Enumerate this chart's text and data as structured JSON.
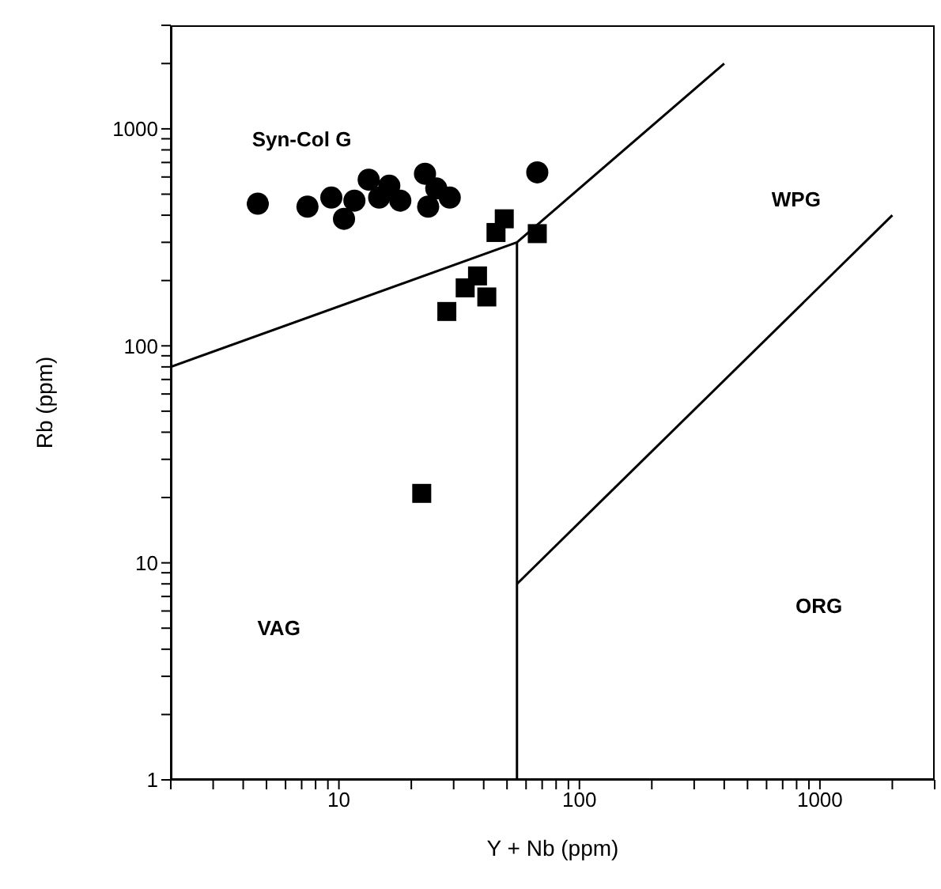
{
  "chart_data": {
    "type": "scatter",
    "xlabel": "Y + Nb (ppm)",
    "ylabel": "Rb (ppm)",
    "log": "xy",
    "xlim": [
      2,
      3000
    ],
    "ylim": [
      1,
      3000
    ],
    "xticks": [
      {
        "value": 2,
        "label": null
      },
      {
        "value": 3,
        "label": null
      },
      {
        "value": 4,
        "label": null
      },
      {
        "value": 5,
        "label": null
      },
      {
        "value": 6,
        "label": null
      },
      {
        "value": 7,
        "label": null
      },
      {
        "value": 8,
        "label": null
      },
      {
        "value": 9,
        "label": null
      },
      10,
      {
        "value": 20,
        "label": null
      },
      {
        "value": 30,
        "label": null
      },
      {
        "value": 40,
        "label": null
      },
      {
        "value": 50,
        "label": null
      },
      {
        "value": 60,
        "label": null
      },
      {
        "value": 70,
        "label": null
      },
      {
        "value": 80,
        "label": null
      },
      {
        "value": 90,
        "label": null
      },
      100,
      {
        "value": 200,
        "label": null
      },
      {
        "value": 300,
        "label": null
      },
      {
        "value": 400,
        "label": null
      },
      {
        "value": 500,
        "label": null
      },
      {
        "value": 600,
        "label": null
      },
      {
        "value": 700,
        "label": null
      },
      {
        "value": 800,
        "label": null
      },
      {
        "value": 900,
        "label": null
      },
      1000,
      {
        "value": 2000,
        "label": null
      },
      {
        "value": 3000,
        "label": null
      }
    ],
    "yticks": [
      1,
      {
        "value": 2,
        "label": null
      },
      {
        "value": 3,
        "label": null
      },
      {
        "value": 4,
        "label": null
      },
      {
        "value": 5,
        "label": null
      },
      {
        "value": 6,
        "label": null
      },
      {
        "value": 7,
        "label": null
      },
      {
        "value": 8,
        "label": null
      },
      {
        "value": 9,
        "label": null
      },
      10,
      {
        "value": 20,
        "label": null
      },
      {
        "value": 30,
        "label": null
      },
      {
        "value": 40,
        "label": null
      },
      {
        "value": 50,
        "label": null
      },
      {
        "value": 60,
        "label": null
      },
      {
        "value": 70,
        "label": null
      },
      {
        "value": 80,
        "label": null
      },
      {
        "value": 90,
        "label": null
      },
      100,
      {
        "value": 200,
        "label": null
      },
      {
        "value": 300,
        "label": null
      },
      {
        "value": 400,
        "label": null
      },
      {
        "value": 500,
        "label": null
      },
      {
        "value": 600,
        "label": null
      },
      {
        "value": 700,
        "label": null
      },
      {
        "value": 800,
        "label": null
      },
      {
        "value": 900,
        "label": null
      },
      1000,
      {
        "value": 2000,
        "label": null
      },
      {
        "value": 3000,
        "label": null
      }
    ],
    "series": [
      {
        "marker": "circle",
        "color": "#000000",
        "x": [
          4.6,
          7.4,
          9.3,
          10.5,
          11.6,
          13.3,
          14.7,
          16.2,
          18,
          22.8,
          23.5,
          25.4,
          28.9,
          66.8
        ],
        "values": [
          452,
          438,
          482,
          385,
          467,
          583,
          482,
          547,
          467,
          621,
          438,
          531,
          482,
          630
        ]
      },
      {
        "marker": "square",
        "color": "#000000",
        "x": [
          48.7,
          45,
          66.8,
          37.7,
          33.5,
          41.2,
          28.1,
          22.1
        ],
        "values": [
          385,
          333,
          329,
          210,
          185,
          168,
          144,
          20.9
        ]
      },
      {
        "type": "line",
        "marker": "none",
        "color": "#000000",
        "x": [
          2,
          55,
          400
        ],
        "values": [
          80,
          300,
          2000
        ]
      },
      {
        "type": "line",
        "marker": "none",
        "color": "#000000",
        "x": [
          55,
          55
        ],
        "values": [
          1,
          300
        ]
      },
      {
        "type": "line",
        "marker": "none",
        "color": "#000000",
        "x": [
          55,
          2000
        ],
        "values": [
          8,
          400
        ]
      }
    ],
    "annotations": [
      "Syn-Col G",
      "WPG",
      "VAG",
      "ORG"
    ]
  }
}
